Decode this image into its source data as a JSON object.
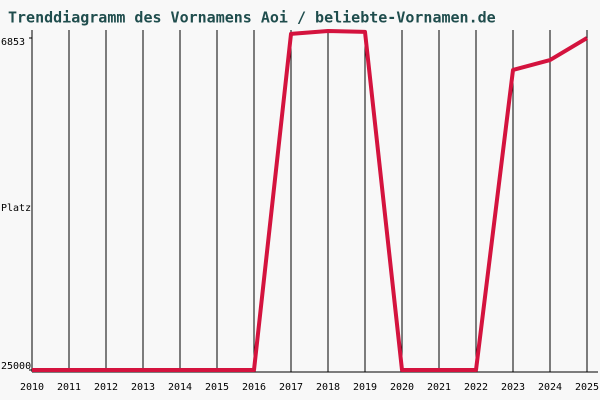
{
  "chart_data": {
    "type": "line",
    "title": "Trenddiagramm des Vornamens Aoi / beliebte-Vornamen.de",
    "y_label": "Platz",
    "categories": [
      "2010",
      "2011",
      "2012",
      "2013",
      "2014",
      "2015",
      "2016",
      "2017",
      "2018",
      "2019",
      "2020",
      "2021",
      "2022",
      "2023",
      "2024",
      "2025"
    ],
    "series": [
      {
        "name": "Aoi",
        "color": "#d4133e",
        "values": [
          25000,
          25000,
          25000,
          25000,
          25000,
          25000,
          25000,
          6630,
          6470,
          6520,
          25000,
          25000,
          25000,
          8600,
          8060,
          6853
        ]
      }
    ],
    "ylim": [
      25000,
      6853
    ],
    "yticks": [
      6853,
      25000
    ],
    "grid": true
  }
}
